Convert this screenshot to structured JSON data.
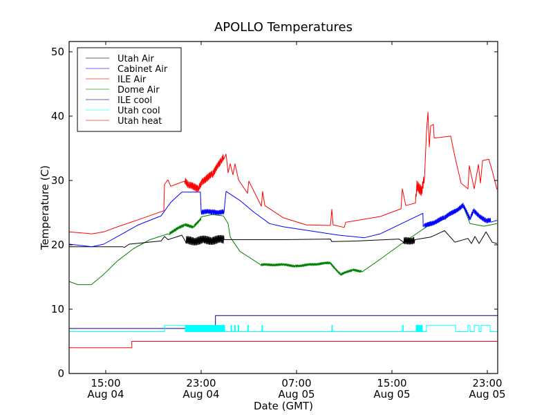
{
  "chart_data": {
    "type": "line",
    "title": "APOLLO Temperatures",
    "xlabel": "Date (GMT)",
    "ylabel": "Temperature (C)",
    "x_units": "hours since Aug 04 00:00 GMT",
    "xlim": [
      11.93,
      47.87
    ],
    "ylim": [
      0,
      51.6
    ],
    "yticks": [
      0,
      10,
      20,
      30,
      40,
      50
    ],
    "xticks": [
      {
        "value": 15,
        "time": "15:00",
        "date": "Aug 04"
      },
      {
        "value": 23,
        "time": "23:00",
        "date": "Aug 04"
      },
      {
        "value": 31,
        "time": "07:00",
        "date": "Aug 05"
      },
      {
        "value": 39,
        "time": "15:00",
        "date": "Aug 05"
      },
      {
        "value": 47,
        "time": "23:00",
        "date": "Aug 05"
      }
    ],
    "grid": false,
    "legend": {
      "placement": "upper-left"
    },
    "series": [
      {
        "name": "Utah Air",
        "color": "#000000",
        "points": [
          [
            11.93,
            19.7
          ],
          [
            16.39,
            19.7
          ],
          [
            16.57,
            19.6
          ],
          [
            16.97,
            20.1
          ],
          [
            19.64,
            20.6
          ],
          [
            19.93,
            21.3
          ],
          [
            20.22,
            20.8
          ],
          [
            21.38,
            21.5
          ],
          [
            21.67,
            20.6
          ],
          [
            24.92,
            20.8
          ],
          [
            29.9,
            20.8
          ],
          [
            33.84,
            20.9
          ],
          [
            33.96,
            20.5
          ],
          [
            36.1,
            20.6
          ],
          [
            39.58,
            20.9
          ],
          [
            39.93,
            20.5
          ],
          [
            40.92,
            20.8
          ],
          [
            42.25,
            21.2
          ],
          [
            43.41,
            22.2
          ],
          [
            44.28,
            20.4
          ],
          [
            45.38,
            21.0
          ],
          [
            45.67,
            20.2
          ],
          [
            45.96,
            21.3
          ],
          [
            46.31,
            20.2
          ],
          [
            46.89,
            22.0
          ],
          [
            47.41,
            20.4
          ],
          [
            47.81,
            20.2
          ]
        ],
        "noise": [
          {
            "from": 21.7,
            "to": 24.9,
            "amplitude": 0.7
          },
          {
            "from": 39.95,
            "to": 40.9,
            "amplitude": 0.6
          }
        ]
      },
      {
        "name": "Cabinet Air",
        "color": "#0000ff",
        "points": [
          [
            11.93,
            20.1
          ],
          [
            13.84,
            19.7
          ],
          [
            14.83,
            20.1
          ],
          [
            15.99,
            21.3
          ],
          [
            17.73,
            23.1
          ],
          [
            19.64,
            24.5
          ],
          [
            20.45,
            26.6
          ],
          [
            21.38,
            28.2
          ],
          [
            22.94,
            28.2
          ],
          [
            23.0,
            25.1
          ],
          [
            23.93,
            25.1
          ],
          [
            24.92,
            25.1
          ],
          [
            25.09,
            28.3
          ],
          [
            26.25,
            26.9
          ],
          [
            27.41,
            25.1
          ],
          [
            28.74,
            23.3
          ],
          [
            29.9,
            22.8
          ],
          [
            34.54,
            21.5
          ],
          [
            36.68,
            21.1
          ],
          [
            38.02,
            21.7
          ],
          [
            41.6,
            24.9
          ],
          [
            41.62,
            22.8
          ],
          [
            43.41,
            24.2
          ],
          [
            44.97,
            26.1
          ],
          [
            45.55,
            24.0
          ],
          [
            45.84,
            25.3
          ],
          [
            46.89,
            23.7
          ],
          [
            47.81,
            23.8
          ]
        ],
        "noise": [
          {
            "from": 23.0,
            "to": 24.9,
            "amplitude": 0.4
          },
          {
            "from": 41.7,
            "to": 47.3,
            "amplitude": 0.4
          }
        ]
      },
      {
        "name": "ILE Air",
        "color": "#ff0000",
        "points": [
          [
            11.93,
            22.0
          ],
          [
            13.84,
            21.7
          ],
          [
            14.83,
            22.0
          ],
          [
            15.99,
            22.8
          ],
          [
            17.73,
            23.9
          ],
          [
            19.87,
            25.3
          ],
          [
            19.93,
            29.4
          ],
          [
            20.22,
            30.1
          ],
          [
            20.45,
            29.1
          ],
          [
            21.61,
            29.9
          ],
          [
            21.96,
            29.2
          ],
          [
            22.77,
            28.8
          ],
          [
            23.06,
            29.9
          ],
          [
            23.93,
            30.9
          ],
          [
            24.68,
            33.0
          ],
          [
            25.09,
            34.1
          ],
          [
            25.26,
            31.2
          ],
          [
            25.44,
            32.6
          ],
          [
            25.67,
            30.9
          ],
          [
            25.84,
            32.6
          ],
          [
            26.13,
            30.1
          ],
          [
            26.89,
            28.0
          ],
          [
            27.0,
            29.9
          ],
          [
            28.05,
            26.0
          ],
          [
            28.16,
            28.3
          ],
          [
            28.34,
            26.1
          ],
          [
            29.9,
            24.2
          ],
          [
            31.81,
            23.1
          ],
          [
            33.84,
            23.0
          ],
          [
            33.96,
            25.5
          ],
          [
            34.07,
            23.1
          ],
          [
            35.0,
            22.7
          ],
          [
            35.12,
            23.5
          ],
          [
            38.02,
            24.4
          ],
          [
            39.76,
            25.6
          ],
          [
            39.87,
            28.7
          ],
          [
            40.16,
            26.1
          ],
          [
            40.97,
            26.5
          ],
          [
            41.09,
            29.4
          ],
          [
            41.49,
            28.2
          ],
          [
            41.73,
            30.4
          ],
          [
            41.9,
            37.6
          ],
          [
            42.02,
            40.6
          ],
          [
            42.13,
            35.2
          ],
          [
            42.25,
            38.5
          ],
          [
            42.48,
            38.7
          ],
          [
            42.54,
            36.6
          ],
          [
            42.65,
            36.6
          ],
          [
            43.93,
            36.9
          ],
          [
            44.28,
            33.7
          ],
          [
            44.8,
            29.6
          ],
          [
            45.38,
            28.7
          ],
          [
            45.49,
            32.3
          ],
          [
            45.9,
            28.7
          ],
          [
            46.25,
            32.5
          ],
          [
            46.42,
            29.6
          ],
          [
            46.6,
            33.1
          ],
          [
            47.12,
            33.3
          ],
          [
            47.41,
            31.5
          ],
          [
            47.81,
            28.6
          ]
        ],
        "noise": [
          {
            "from": 21.6,
            "to": 24.9,
            "amplitude": 0.6
          },
          {
            "from": 40.97,
            "to": 41.7,
            "amplitude": 0.9
          }
        ]
      },
      {
        "name": "Dome Air",
        "color": "#008000",
        "points": [
          [
            11.93,
            14.3
          ],
          [
            12.68,
            13.8
          ],
          [
            13.79,
            13.8
          ],
          [
            14.83,
            15.4
          ],
          [
            15.99,
            17.5
          ],
          [
            17.32,
            19.4
          ],
          [
            18.71,
            20.8
          ],
          [
            20.22,
            21.7
          ],
          [
            21.61,
            23.1
          ],
          [
            22.36,
            22.8
          ],
          [
            23.12,
            24.4
          ],
          [
            23.93,
            24.7
          ],
          [
            24.86,
            24.5
          ],
          [
            25.26,
            23.3
          ],
          [
            25.44,
            21.2
          ],
          [
            26.25,
            19.0
          ],
          [
            27.99,
            16.9
          ],
          [
            29.9,
            16.9
          ],
          [
            30.89,
            16.7
          ],
          [
            33.79,
            17.2
          ],
          [
            34.71,
            15.4
          ],
          [
            35.7,
            16.1
          ],
          [
            36.45,
            15.9
          ],
          [
            38.19,
            18.0
          ],
          [
            39.76,
            20.1
          ],
          [
            41.9,
            22.8
          ],
          [
            43.41,
            24.0
          ],
          [
            44.97,
            26.0
          ],
          [
            45.55,
            23.3
          ],
          [
            46.71,
            22.9
          ],
          [
            47.81,
            23.3
          ]
        ],
        "noise": [
          {
            "from": 20.3,
            "to": 23.0,
            "amplitude": 0.25
          },
          {
            "from": 28.0,
            "to": 36.5,
            "amplitude": 0.2
          }
        ]
      },
      {
        "name": "ILE cool",
        "color": "#000080",
        "step": true,
        "points": [
          [
            11.93,
            7
          ],
          [
            24.2,
            7
          ],
          [
            24.2,
            9
          ],
          [
            47.87,
            9
          ]
        ]
      },
      {
        "name": "Utah cool",
        "color": "#00ffff",
        "step": true,
        "base": 6.5,
        "high": 7.5,
        "high_intervals": [
          [
            19.93,
            21.67
          ],
          [
            25.5,
            25.56
          ],
          [
            25.8,
            25.86
          ],
          [
            26.1,
            26.16
          ],
          [
            26.9,
            26.96
          ],
          [
            28.1,
            28.16
          ],
          [
            33.96,
            34.0
          ],
          [
            39.87,
            39.95
          ],
          [
            41.9,
            44.34
          ],
          [
            45.38,
            45.55
          ],
          [
            45.9,
            46.31
          ],
          [
            46.48,
            47.23
          ]
        ],
        "toggle_ranges": [
          [
            21.67,
            24.97
          ],
          [
            41.03,
            41.55
          ]
        ]
      },
      {
        "name": "Utah heat",
        "color": "#ff0000",
        "step": true,
        "points": [
          [
            11.93,
            4
          ],
          [
            17.19,
            4
          ],
          [
            17.19,
            5
          ],
          [
            47.87,
            5
          ]
        ]
      }
    ]
  }
}
